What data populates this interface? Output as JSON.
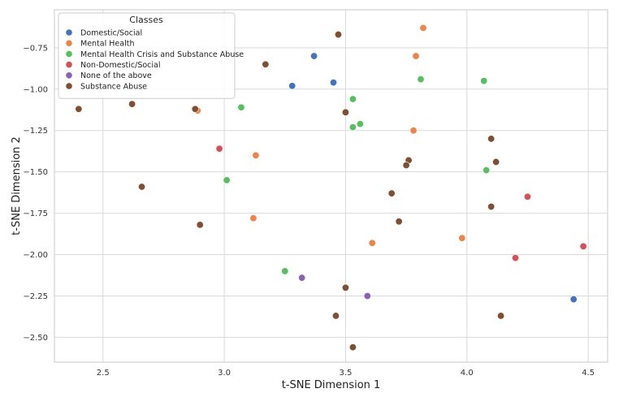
{
  "chart_data": {
    "type": "scatter",
    "title": "",
    "xlabel": "t-SNE Dimension 1",
    "ylabel": "t-SNE Dimension 2",
    "xlim": [
      2.3,
      4.58
    ],
    "ylim": [
      -2.65,
      -0.52
    ],
    "xticks": [
      2.5,
      3.0,
      3.5,
      4.0,
      4.5
    ],
    "xtick_labels": [
      "2.5",
      "3.0",
      "3.5",
      "4.0",
      "4.5"
    ],
    "yticks": [
      -0.75,
      -1.0,
      -1.25,
      -1.5,
      -1.75,
      -2.0,
      -2.25,
      -2.5
    ],
    "ytick_labels": [
      "−0.75",
      "−1.00",
      "−1.25",
      "−1.50",
      "−1.75",
      "−2.00",
      "−2.25",
      "−2.50"
    ],
    "grid": true,
    "legend": {
      "title": "Classes",
      "position": "top-left"
    },
    "series": [
      {
        "name": "Domestic/Social",
        "color": "#4272c4",
        "points": [
          [
            3.37,
            -0.8
          ],
          [
            3.28,
            -0.98
          ],
          [
            3.45,
            -0.96
          ],
          [
            4.44,
            -2.27
          ]
        ]
      },
      {
        "name": "Mental Health",
        "color": "#ef8446",
        "points": [
          [
            3.82,
            -0.63
          ],
          [
            3.79,
            -0.8
          ],
          [
            2.89,
            -1.13
          ],
          [
            3.78,
            -1.25
          ],
          [
            3.13,
            -1.4
          ],
          [
            3.12,
            -1.78
          ],
          [
            3.61,
            -1.93
          ],
          [
            3.98,
            -1.9
          ]
        ]
      },
      {
        "name": "Mental Health Crisis and Substance Abuse",
        "color": "#53c15c",
        "points": [
          [
            3.81,
            -0.94
          ],
          [
            4.07,
            -0.95
          ],
          [
            3.07,
            -1.11
          ],
          [
            3.53,
            -1.06
          ],
          [
            3.56,
            -1.21
          ],
          [
            3.53,
            -1.23
          ],
          [
            3.01,
            -1.55
          ],
          [
            4.08,
            -1.49
          ],
          [
            3.25,
            -2.1
          ]
        ]
      },
      {
        "name": "Non-Domestic/Social",
        "color": "#d94f56",
        "points": [
          [
            2.98,
            -1.36
          ],
          [
            4.25,
            -1.65
          ],
          [
            4.48,
            -1.95
          ],
          [
            4.2,
            -2.02
          ]
        ]
      },
      {
        "name": "None of the above",
        "color": "#8c60b5",
        "points": [
          [
            3.32,
            -2.14
          ],
          [
            3.59,
            -2.25
          ]
        ]
      },
      {
        "name": "Substance Abuse",
        "color": "#7f4f33",
        "points": [
          [
            3.47,
            -0.67
          ],
          [
            3.17,
            -0.85
          ],
          [
            2.4,
            -1.12
          ],
          [
            2.62,
            -1.09
          ],
          [
            2.88,
            -1.12
          ],
          [
            3.5,
            -1.14
          ],
          [
            4.1,
            -1.3
          ],
          [
            3.76,
            -1.43
          ],
          [
            3.75,
            -1.46
          ],
          [
            4.12,
            -1.44
          ],
          [
            2.66,
            -1.59
          ],
          [
            3.69,
            -1.63
          ],
          [
            4.1,
            -1.71
          ],
          [
            2.9,
            -1.82
          ],
          [
            3.72,
            -1.8
          ],
          [
            3.5,
            -2.2
          ],
          [
            3.46,
            -2.37
          ],
          [
            4.14,
            -2.37
          ],
          [
            3.53,
            -2.56
          ]
        ]
      }
    ]
  }
}
